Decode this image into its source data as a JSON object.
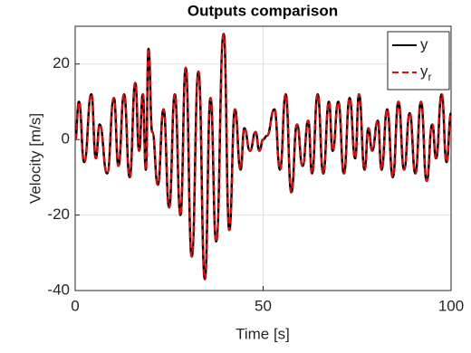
{
  "chart_data": {
    "type": "line",
    "title": "Outputs comparison",
    "x_label": "Time [s]",
    "y_label": "Velocity [m/s]",
    "x": [
      0,
      1,
      2.4,
      4.3,
      5.5,
      6.5,
      8.5,
      10.3,
      11.5,
      13,
      14.5,
      16,
      17,
      18,
      18.8,
      19.5,
      20.5,
      22,
      23.5,
      25,
      26.5,
      28,
      29.4,
      31,
      32.8,
      34.5,
      36,
      37.5,
      39.5,
      41,
      42.5,
      44,
      45,
      46.5,
      48,
      49,
      50,
      51,
      53,
      54.5,
      56,
      57.5,
      59,
      60.5,
      62,
      63,
      64.5,
      66,
      67.5,
      68.5,
      70,
      71.5,
      73,
      74.5,
      75.5,
      77,
      78,
      79,
      80.5,
      81.5,
      83,
      84.5,
      86,
      87.5,
      89,
      90.5,
      92,
      93.5,
      95,
      96,
      97.5,
      98.8,
      100
    ],
    "series": [
      {
        "name": "y",
        "color": "#000000",
        "style": "solid",
        "values": [
          0,
          10,
          -6,
          12,
          -5,
          4,
          -9,
          11,
          -7,
          12,
          -10,
          15,
          -3,
          12,
          -8,
          24,
          2,
          -12,
          8,
          -18,
          12,
          -20,
          19,
          -31,
          18,
          -37,
          11,
          -27,
          28,
          -24,
          8,
          -8,
          3,
          -3,
          2,
          -3,
          0,
          1,
          8,
          -8,
          12,
          -14,
          4,
          -7,
          5,
          -9,
          12,
          -9,
          10,
          -3,
          10,
          -9,
          11,
          -5,
          12,
          -8,
          3,
          -3,
          5,
          -8,
          8,
          -10,
          10,
          -8,
          7,
          -9,
          10,
          -11,
          4,
          -5,
          12,
          -6,
          7
        ]
      },
      {
        "name": "y_r",
        "color": "#ff0000",
        "style": "dashed",
        "values": [
          0,
          10,
          -6,
          12,
          -5,
          4,
          -9,
          11,
          -7,
          12,
          -10,
          15,
          -3,
          12,
          -8,
          24,
          2,
          -12,
          8,
          -18,
          12,
          -20,
          19,
          -31,
          18,
          -37,
          11,
          -27,
          28,
          -24,
          8,
          -8,
          3,
          -3,
          2,
          -3,
          0,
          1,
          8,
          -8,
          12,
          -14,
          4,
          -7,
          5,
          -9,
          12,
          -9,
          10,
          -3,
          10,
          -9,
          11,
          -5,
          12,
          -8,
          3,
          -3,
          5,
          -8,
          8,
          -10,
          10,
          -8,
          7,
          -9,
          10,
          -11,
          4,
          -5,
          12,
          -6,
          7
        ]
      }
    ],
    "xlim": [
      0,
      100
    ],
    "xticks": [
      0,
      50,
      100
    ],
    "ylim": [
      -40,
      30
    ],
    "yticks": [
      -40,
      -20,
      0,
      20
    ],
    "grid": true,
    "legend": "top-right"
  }
}
